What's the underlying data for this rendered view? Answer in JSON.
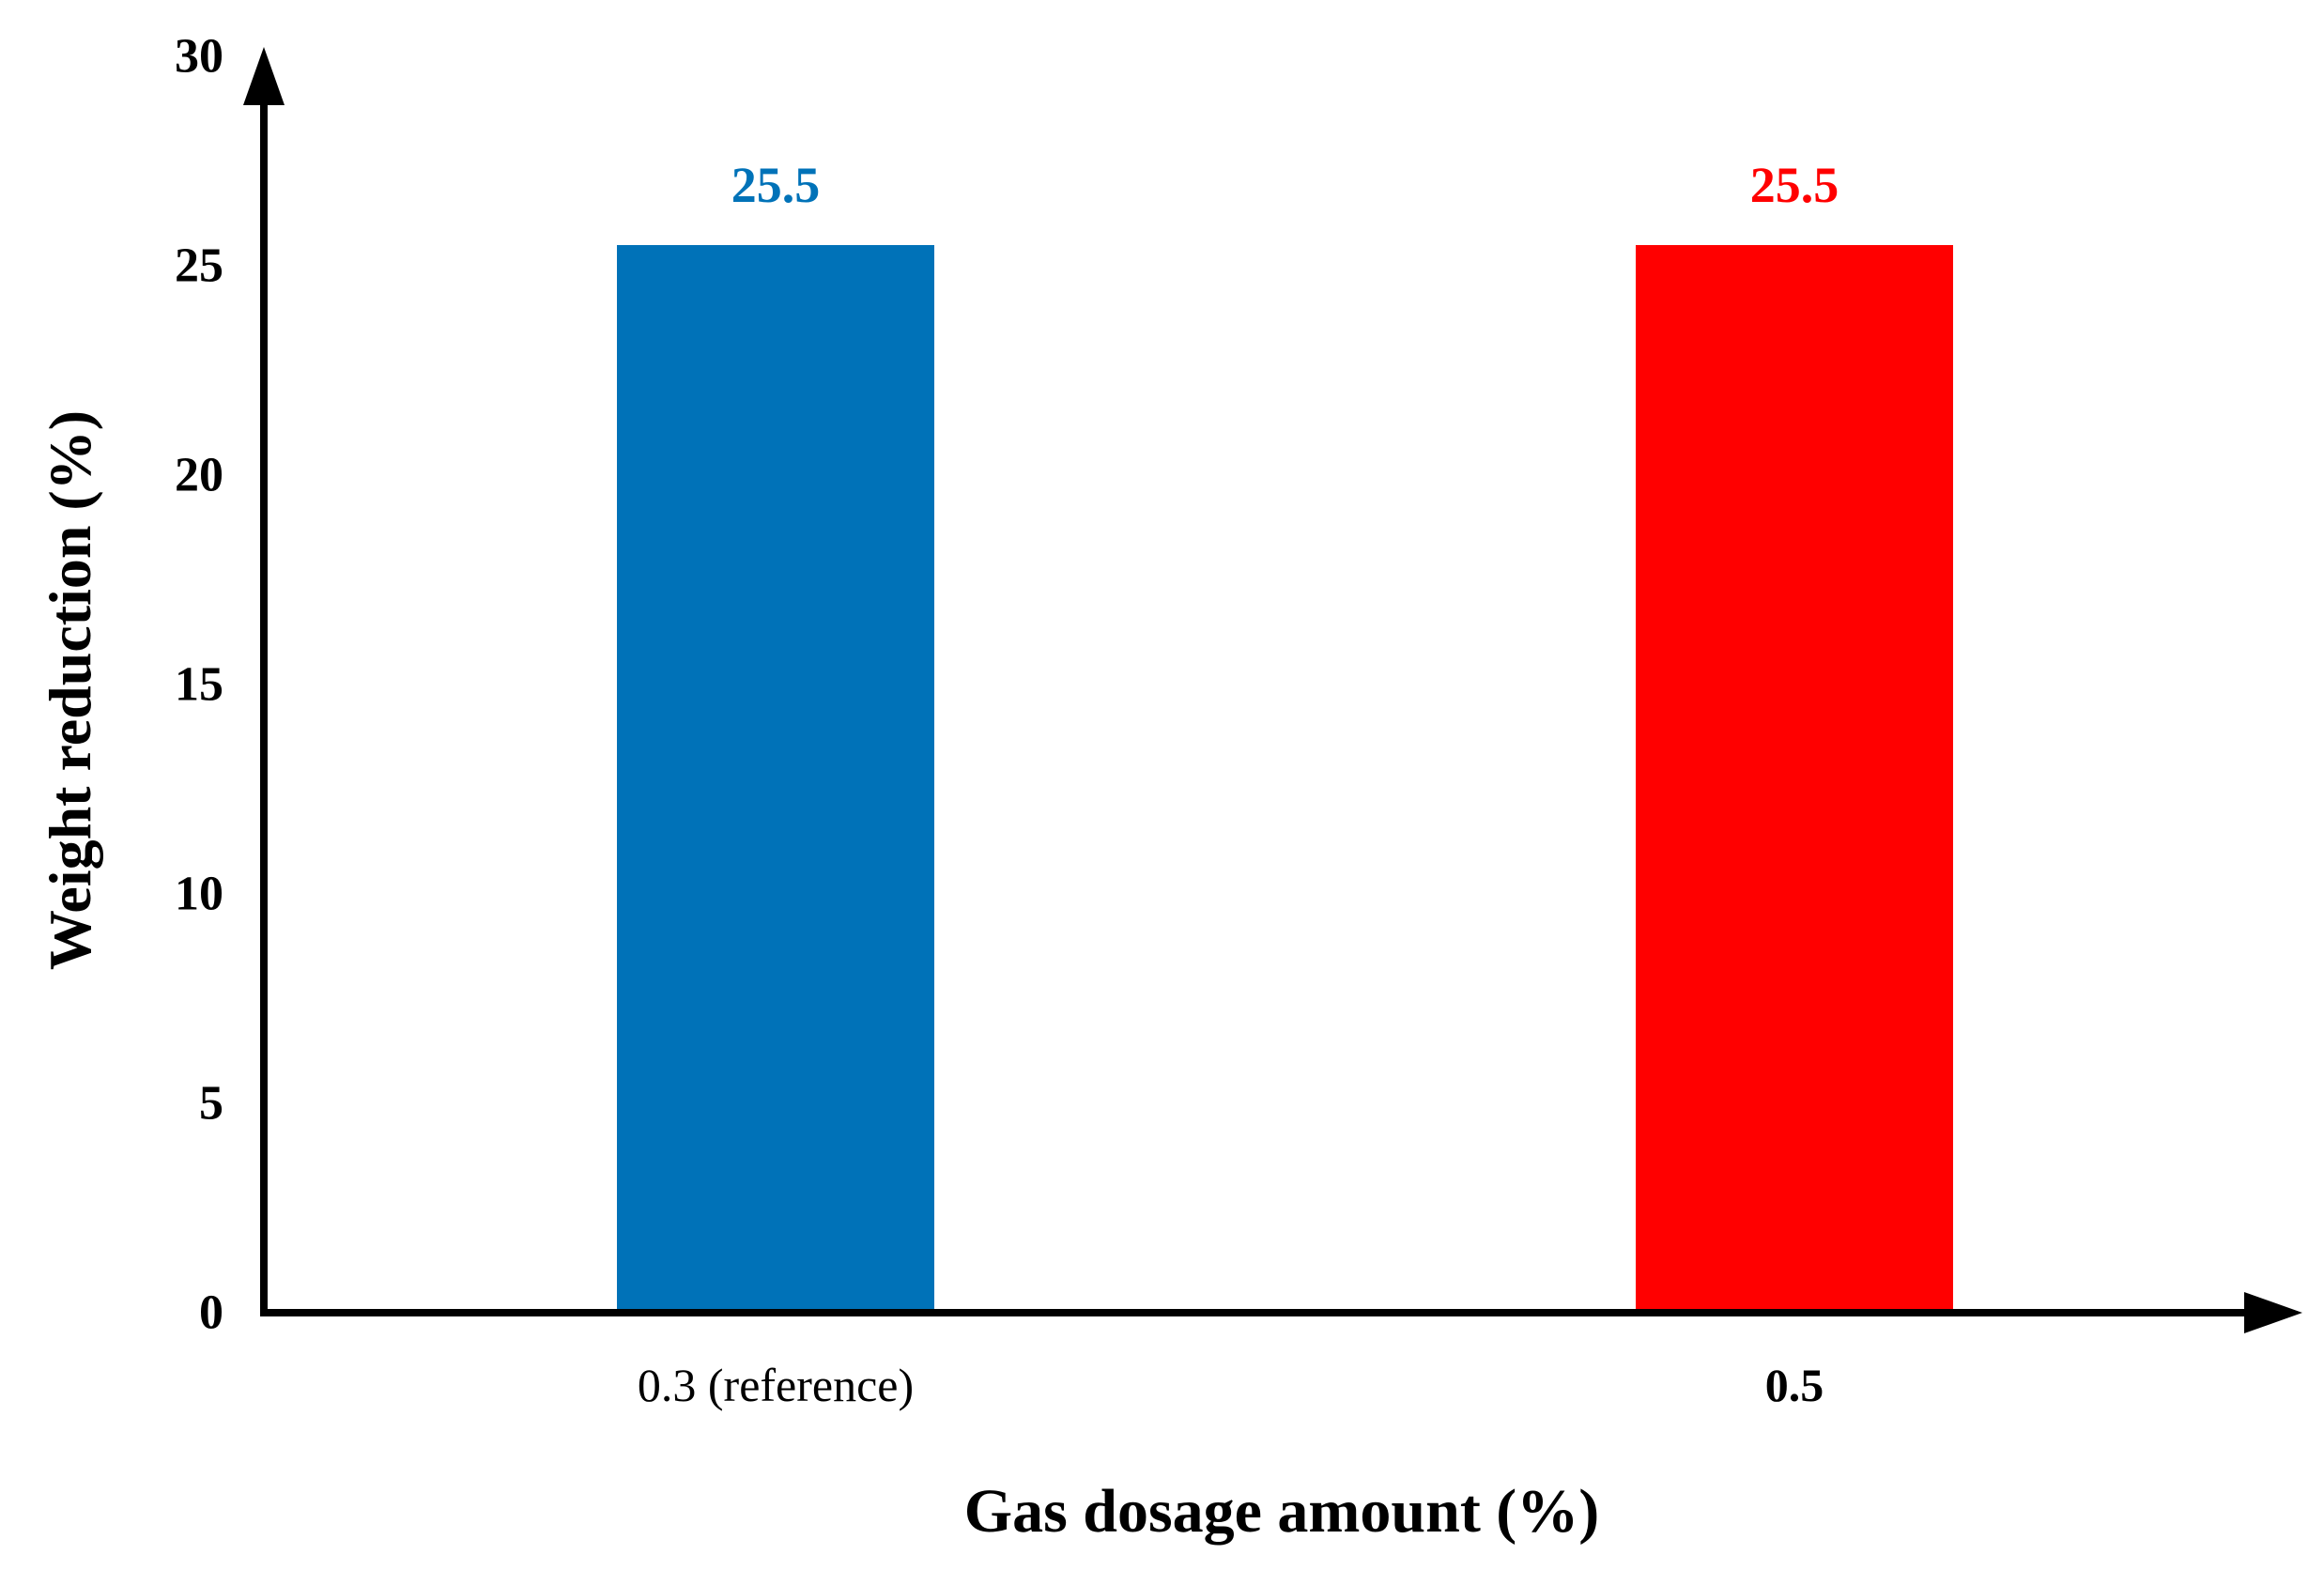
{
  "chart_data": {
    "type": "bar",
    "title": "",
    "xlabel": "Gas dosage amount (%)",
    "ylabel": "Weight reduction (%)",
    "categories": [
      "0.3 (reference)",
      "0.5"
    ],
    "values": [
      25.5,
      25.5
    ],
    "value_labels": [
      "25.5",
      "25.5"
    ],
    "bar_colors": [
      "#0072B8",
      "#FF0000"
    ],
    "value_label_colors": [
      "#0072B8",
      "#FF0000"
    ],
    "category_bold": [
      false,
      true
    ],
    "yticks": [
      "0",
      "5",
      "10",
      "15",
      "20",
      "25",
      "30"
    ],
    "ylim": [
      0,
      30
    ],
    "grid": false,
    "legend": null,
    "axis_color": "#000000",
    "background": "#FFFFFF"
  }
}
